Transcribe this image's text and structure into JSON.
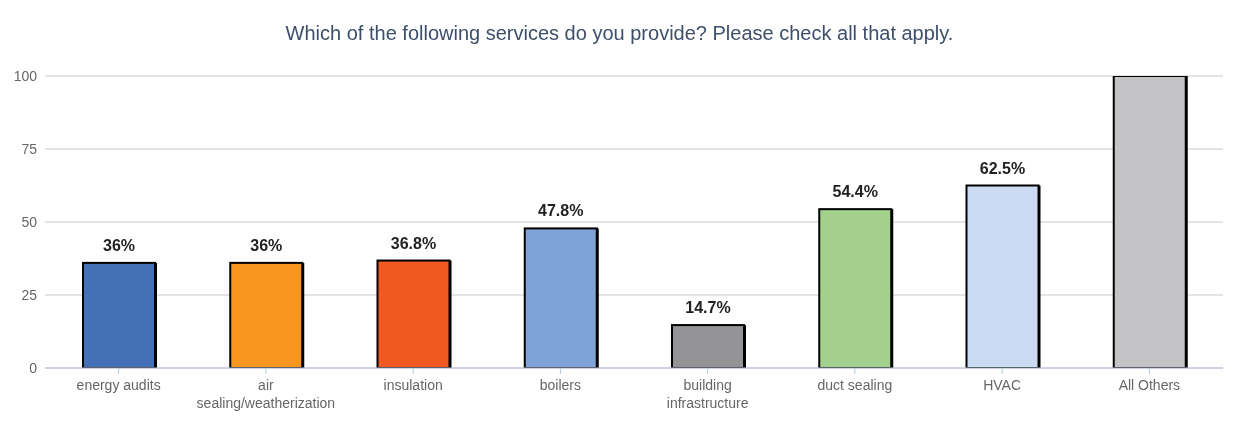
{
  "chart_data": {
    "type": "bar",
    "title": "Which of the following services do you provide? Please check all that apply.",
    "categories": [
      "energy audits",
      "air sealing/weatherization",
      "insulation",
      "boilers",
      "building infrastructure",
      "duct sealing",
      "HVAC",
      "All Others"
    ],
    "values": [
      36,
      36,
      36.8,
      47.8,
      14.7,
      54.4,
      62.5,
      100
    ],
    "value_labels": [
      "36%",
      "36%",
      "36.8%",
      "47.8%",
      "14.7%",
      "54.4%",
      "62.5%",
      null
    ],
    "colors": [
      "#4470b8",
      "#f7971f",
      "#f05a22",
      "#7fa3d6",
      "#949497",
      "#a3d08c",
      "#cbdcf2",
      "#c4c4c6"
    ],
    "ylim": [
      0,
      100
    ],
    "yticks": [
      0,
      25,
      50,
      75,
      100
    ],
    "grid": "y"
  }
}
